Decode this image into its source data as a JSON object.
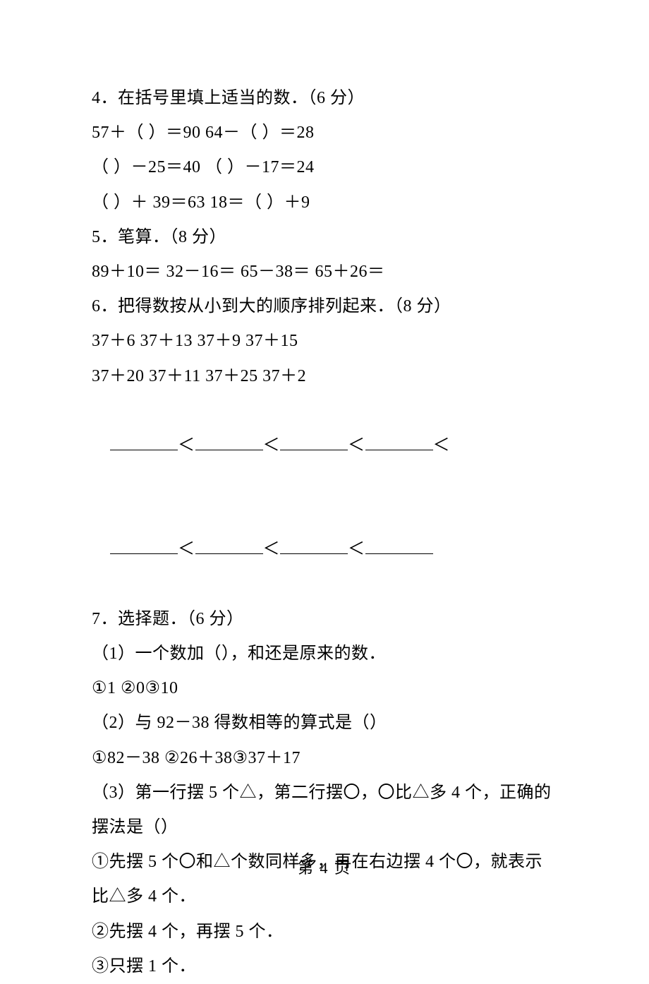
{
  "q4": {
    "title": "4．在括号里填上适当的数．（6 分）",
    "line1": "57＋（ ）＝90 64－（ ）＝28",
    "line2": "（ ）－25＝40 （ ）－17＝24",
    "line3": "（ ）＋ 39＝63 18＝（ ）＋9"
  },
  "q5": {
    "title": "5．笔算．（8 分）",
    "line1": "89＋10＝ 32－16＝ 65－38＝ 65＋26＝"
  },
  "q6": {
    "title": "6．把得数按从小到大的顺序排列起来．（8 分）",
    "line1": "37＋6 37＋13 37＋9 37＋15",
    "line2": "37＋20 37＋11 37＋25 37＋2",
    "lt": "＜"
  },
  "q7": {
    "title": "7．选择题．（6 分）",
    "p1": {
      "stem": "（1）一个数加（），和还是原来的数．",
      "opts": "①1 ②0③10"
    },
    "p2": {
      "stem": "（2）与 92－38 得数相等的算式是（）",
      "opts": "①82－38 ②26＋38③37＋17"
    },
    "p3": {
      "stem": "（3）第一行摆 5 个△，第二行摆〇，〇比△多 4 个，正确的摆法是（）",
      "opt1": "①先摆 5 个〇和△个数同样多，再在右边摆 4 个〇，就表示比△多 4 个．",
      "opt2": "②先摆 4 个，再摆 5 个．",
      "opt3": "③只摆 1 个．"
    }
  },
  "footer": "第 4 页"
}
